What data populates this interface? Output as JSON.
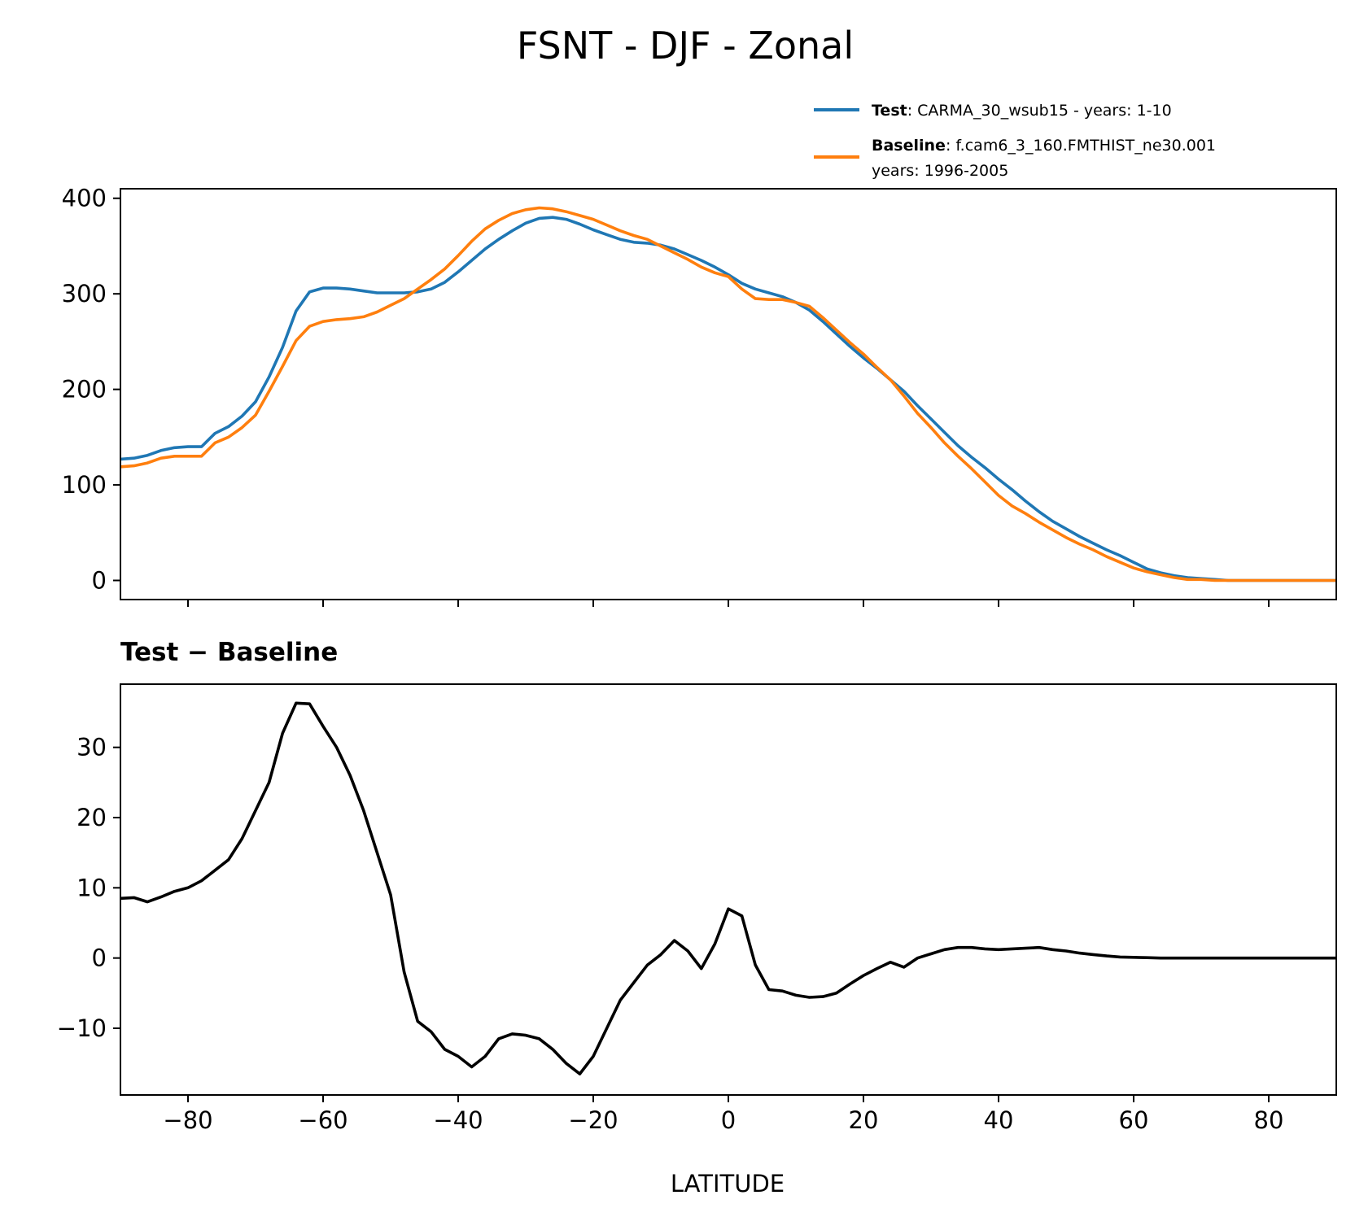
{
  "figure": {
    "title": "FSNT - DJF - Zonal",
    "legend": {
      "placement": "top-right",
      "entries": [
        {
          "prefix": "Test",
          "text": ": CARMA_30_wsub15 - years: 1-10",
          "text2": "",
          "color": "#1f77b4"
        },
        {
          "prefix": "Baseline",
          "text": ": f.cam6_3_160.FMTHIST_ne30.001",
          "text2": "years: 1996-2005",
          "color": "#ff7f0e"
        }
      ]
    }
  },
  "chart_data": [
    {
      "type": "line",
      "panel": "top",
      "title": "",
      "xlabel": "",
      "ylabel": "",
      "xlim": [
        -90,
        90
      ],
      "ylim": [
        -20,
        410
      ],
      "yticks": [
        0,
        100,
        200,
        300,
        400
      ],
      "xticks": [
        -80,
        -60,
        -40,
        -20,
        0,
        20,
        40,
        60,
        80
      ],
      "show_xtick_labels": false,
      "grid": false,
      "series": [
        {
          "name": "Test",
          "color": "#1f77b4",
          "x": [
            -90,
            -88,
            -86,
            -84,
            -82,
            -80,
            -78,
            -76,
            -74,
            -72,
            -70,
            -68,
            -66,
            -64,
            -62,
            -60,
            -58,
            -56,
            -54,
            -52,
            -50,
            -48,
            -46,
            -44,
            -42,
            -40,
            -38,
            -36,
            -34,
            -32,
            -30,
            -28,
            -26,
            -24,
            -22,
            -20,
            -18,
            -16,
            -14,
            -12,
            -10,
            -8,
            -6,
            -4,
            -2,
            0,
            2,
            4,
            6,
            8,
            10,
            12,
            14,
            16,
            18,
            20,
            22,
            24,
            26,
            28,
            30,
            32,
            34,
            36,
            38,
            40,
            42,
            44,
            46,
            48,
            50,
            52,
            54,
            56,
            58,
            60,
            62,
            64,
            66,
            68,
            70,
            72,
            74,
            76,
            78,
            80,
            82,
            84,
            86,
            88,
            90
          ],
          "values": [
            127,
            128,
            131,
            136,
            139,
            140,
            140,
            154,
            161,
            172,
            187,
            213,
            244,
            282,
            302,
            306,
            306,
            305,
            303,
            301,
            301,
            301,
            302,
            305,
            312,
            323,
            335,
            347,
            357,
            366,
            374,
            379,
            380,
            378,
            373,
            367,
            362,
            357,
            354,
            353,
            351,
            347,
            341,
            335,
            328,
            320,
            311,
            305,
            301,
            297,
            291,
            283,
            271,
            258,
            245,
            233,
            222,
            210,
            198,
            183,
            169,
            155,
            141,
            129,
            118,
            106,
            95,
            83,
            72,
            62,
            54,
            46,
            39,
            32,
            26,
            19,
            12,
            8,
            5,
            3,
            2,
            1,
            0,
            0,
            0,
            0,
            0,
            0,
            0,
            0,
            0
          ]
        },
        {
          "name": "Baseline",
          "color": "#ff7f0e",
          "x": [
            -90,
            -88,
            -86,
            -84,
            -82,
            -80,
            -78,
            -76,
            -74,
            -72,
            -70,
            -68,
            -66,
            -64,
            -62,
            -60,
            -58,
            -56,
            -54,
            -52,
            -50,
            -48,
            -46,
            -44,
            -42,
            -40,
            -38,
            -36,
            -34,
            -32,
            -30,
            -28,
            -26,
            -24,
            -22,
            -20,
            -18,
            -16,
            -14,
            -12,
            -10,
            -8,
            -6,
            -4,
            -2,
            0,
            2,
            4,
            6,
            8,
            10,
            12,
            14,
            16,
            18,
            20,
            22,
            24,
            26,
            28,
            30,
            32,
            34,
            36,
            38,
            40,
            42,
            44,
            46,
            48,
            50,
            52,
            54,
            56,
            58,
            60,
            62,
            64,
            66,
            68,
            70,
            72,
            74,
            76,
            78,
            80,
            82,
            84,
            86,
            88,
            90
          ],
          "values": [
            119,
            120,
            123,
            128,
            130,
            130,
            130,
            144,
            150,
            160,
            173,
            198,
            224,
            251,
            266,
            271,
            273,
            274,
            276,
            281,
            288,
            295,
            305,
            315,
            326,
            340,
            355,
            368,
            377,
            384,
            388,
            390,
            389,
            386,
            382,
            378,
            372,
            366,
            361,
            357,
            350,
            343,
            336,
            328,
            322,
            318,
            305,
            295,
            294,
            294,
            291,
            287,
            275,
            262,
            249,
            237,
            223,
            210,
            193,
            175,
            160,
            144,
            130,
            117,
            103,
            89,
            78,
            70,
            61,
            53,
            45,
            38,
            32,
            25,
            19,
            13,
            9,
            6,
            3,
            1,
            1,
            0,
            0,
            0,
            0,
            0,
            0,
            0,
            0,
            0,
            0
          ]
        }
      ]
    },
    {
      "type": "line",
      "panel": "bottom",
      "title": "Test − Baseline",
      "xlabel": "LATITUDE",
      "ylabel": "",
      "xlim": [
        -90,
        90
      ],
      "ylim": [
        -19.5,
        39
      ],
      "yticks": [
        -10,
        0,
        10,
        20,
        30
      ],
      "xticks": [
        -80,
        -60,
        -40,
        -20,
        0,
        20,
        40,
        60,
        80
      ],
      "show_xtick_labels": true,
      "grid": false,
      "series": [
        {
          "name": "",
          "color": "#000000",
          "x": [
            -90,
            -88,
            -86,
            -84,
            -82,
            -80,
            -78,
            -76,
            -74,
            -72,
            -70,
            -68,
            -66,
            -64,
            -62,
            -60,
            -58,
            -56,
            -54,
            -52,
            -50,
            -48,
            -46,
            -44,
            -42,
            -40,
            -38,
            -36,
            -34,
            -32,
            -30,
            -28,
            -26,
            -24,
            -22,
            -20,
            -18,
            -16,
            -14,
            -12,
            -10,
            -8,
            -6,
            -4,
            -2,
            0,
            2,
            4,
            6,
            8,
            10,
            12,
            14,
            16,
            18,
            20,
            22,
            24,
            26,
            28,
            30,
            32,
            34,
            36,
            38,
            40,
            42,
            44,
            46,
            48,
            50,
            52,
            54,
            56,
            58,
            60,
            62,
            64,
            66,
            68,
            70,
            72,
            74,
            76,
            78,
            80,
            82,
            84,
            86,
            88,
            90
          ],
          "values": [
            8.5,
            8.6,
            8,
            8.7,
            9.5,
            10,
            11,
            12.5,
            14,
            17,
            21,
            25,
            32,
            36.3,
            36.2,
            33,
            30,
            26,
            21,
            15,
            9,
            -2,
            -9,
            -10.5,
            -13,
            -14,
            -15.5,
            -14,
            -11.5,
            -10.8,
            -11,
            -11.5,
            -13,
            -15,
            -16.5,
            -14,
            -10,
            -6,
            -3.5,
            -1,
            0.5,
            2.5,
            1,
            -1.5,
            2,
            7,
            6,
            -1,
            -4.5,
            -4.7,
            -5.3,
            -5.6,
            -5.5,
            -5,
            -3.7,
            -2.5,
            -1.5,
            -0.6,
            -1.3,
            0,
            0.6,
            1.2,
            1.5,
            1.5,
            1.3,
            1.2,
            1.3,
            1.4,
            1.5,
            1.2,
            1,
            0.7,
            0.5,
            0.3,
            0.15,
            0.1,
            0.05,
            0,
            0,
            0,
            0,
            0,
            0,
            0,
            0,
            0,
            0,
            0,
            0,
            0,
            0
          ]
        }
      ]
    }
  ]
}
